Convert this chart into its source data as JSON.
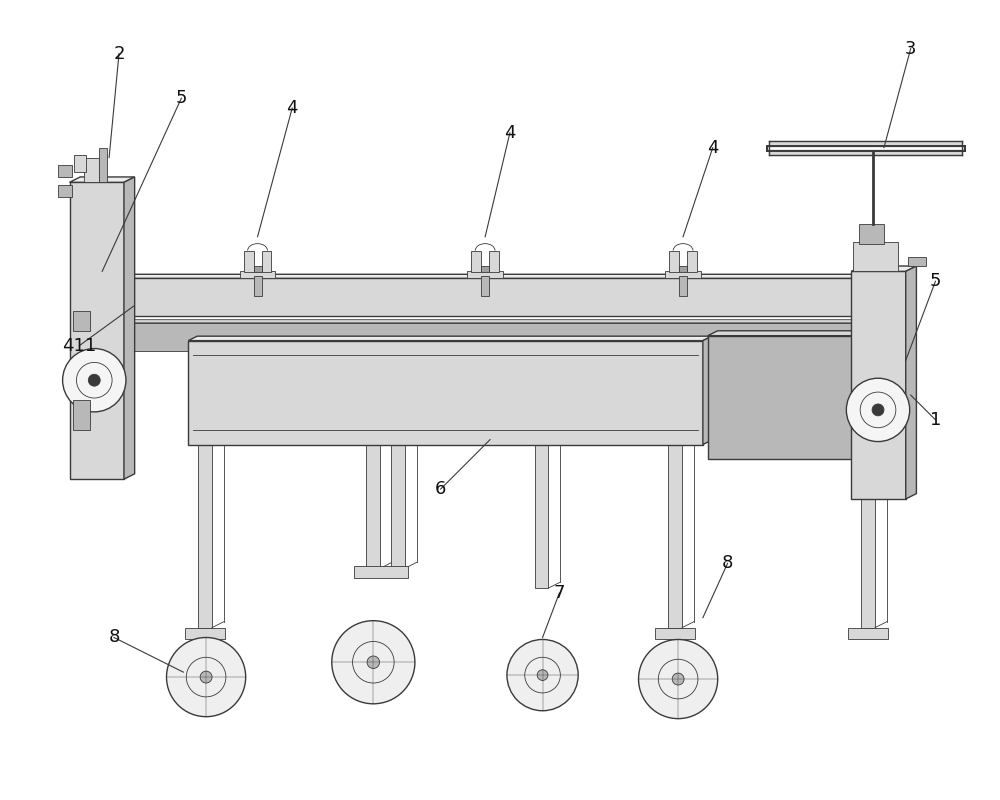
{
  "bg_color": "#ffffff",
  "lc": "#3a3a3a",
  "lc_light": "#888888",
  "fc_light": "#ececec",
  "fc_mid": "#d8d8d8",
  "fc_dark": "#b8b8b8",
  "fc_darker": "#a0a0a0",
  "lw_main": 1.0,
  "lw_thin": 0.6,
  "fig_w": 10,
  "fig_h": 8,
  "label_fs": 13,
  "sx": 0.18,
  "sy": -0.09
}
